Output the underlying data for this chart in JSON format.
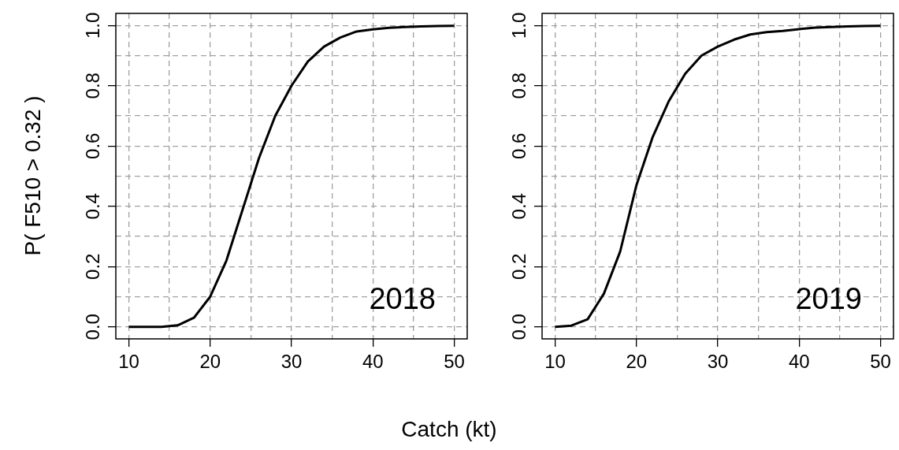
{
  "chart_data": [
    {
      "type": "line",
      "ylabel": "P( F510 > 0.32 )",
      "xlabel": "Catch (kt)",
      "annotations": [
        "2018"
      ],
      "color": "#000000",
      "line_style": "solid",
      "grid": true,
      "x": [
        10,
        12,
        14,
        16,
        18,
        20,
        22,
        24,
        26,
        28,
        30,
        32,
        34,
        36,
        38,
        40,
        42,
        44,
        46,
        48,
        50
      ],
      "values": [
        0,
        0,
        0,
        0.005,
        0.03,
        0.1,
        0.22,
        0.39,
        0.56,
        0.7,
        0.8,
        0.88,
        0.93,
        0.96,
        0.98,
        0.987,
        0.992,
        0.995,
        0.997,
        0.998,
        0.999
      ],
      "xlim": [
        8.4,
        51.6
      ],
      "ylim": [
        -0.04,
        1.04
      ],
      "xticks": [
        10,
        {
          "value": 15,
          "label": null
        },
        20,
        {
          "value": 25,
          "label": null
        },
        30,
        {
          "value": 35,
          "label": null
        },
        40,
        {
          "value": 45,
          "label": null
        },
        50
      ],
      "yticks": [
        {
          "value": 0,
          "label": "0.0"
        },
        {
          "value": 0.1,
          "label": null
        },
        0.2,
        {
          "value": 0.3,
          "label": null
        },
        0.4,
        {
          "value": 0.5,
          "label": null
        },
        0.6,
        {
          "value": 0.7,
          "label": null
        },
        0.8,
        {
          "value": 0.9,
          "label": null
        },
        {
          "value": 1,
          "label": "1.0"
        }
      ]
    },
    {
      "type": "line",
      "annotations": [
        "2019"
      ],
      "color": "#000000",
      "line_style": "solid",
      "grid": true,
      "x": [
        10,
        12,
        14,
        16,
        18,
        20,
        22,
        24,
        26,
        28,
        30,
        32,
        34,
        36,
        38,
        40,
        42,
        44,
        46,
        48,
        50
      ],
      "values": [
        0,
        0.004,
        0.025,
        0.11,
        0.25,
        0.47,
        0.63,
        0.75,
        0.84,
        0.9,
        0.93,
        0.953,
        0.97,
        0.978,
        0.982,
        0.988,
        0.993,
        0.995,
        0.997,
        0.998,
        0.999
      ],
      "xlim": [
        8.4,
        51.6
      ],
      "ylim": [
        -0.04,
        1.04
      ],
      "xticks": [
        10,
        {
          "value": 15,
          "label": null
        },
        20,
        {
          "value": 25,
          "label": null
        },
        30,
        {
          "value": 35,
          "label": null
        },
        40,
        {
          "value": 45,
          "label": null
        },
        50
      ],
      "yticks": [
        {
          "value": 0,
          "label": "0.0"
        },
        {
          "value": 0.1,
          "label": null
        },
        0.2,
        {
          "value": 0.3,
          "label": null
        },
        0.4,
        {
          "value": 0.5,
          "label": null
        },
        0.6,
        {
          "value": 0.7,
          "label": null
        },
        0.8,
        {
          "value": 0.9,
          "label": null
        },
        {
          "value": 1,
          "label": "1.0"
        }
      ]
    }
  ]
}
